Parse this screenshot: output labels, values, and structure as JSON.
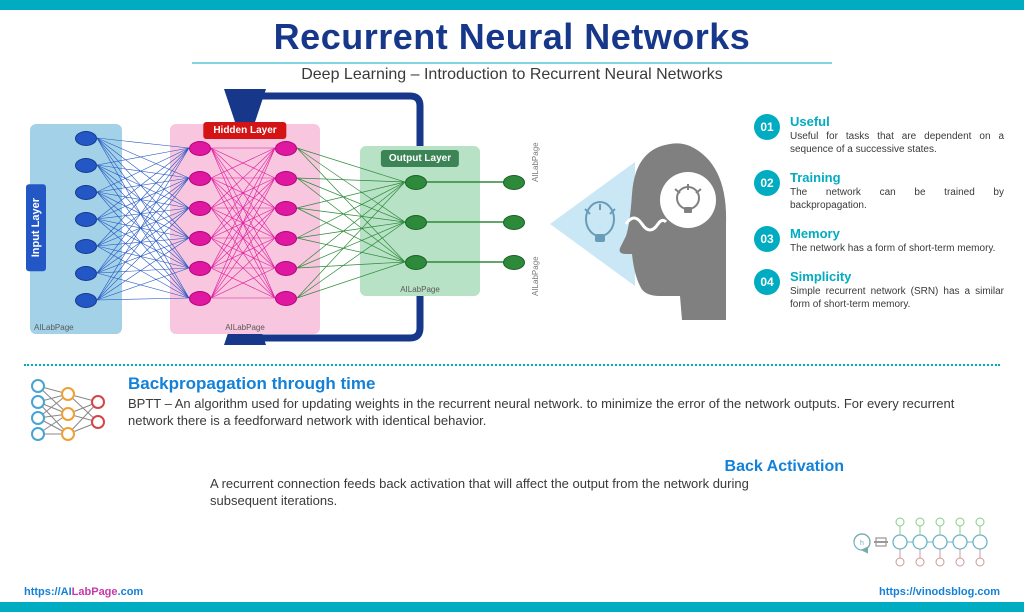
{
  "header": {
    "title": "Recurrent Neural Networks",
    "subtitle": "Deep Learning – Introduction to Recurrent Neural Networks"
  },
  "colors": {
    "accent": "#00acc1",
    "title": "#17388a",
    "link_blue": "#1481d8",
    "link_pink": "#c837ab",
    "input_fill": "#a3d1e8",
    "hidden_fill": "#f8c6de",
    "output_fill": "#b8e2c5",
    "input_node": "#2357c5",
    "hidden_node": "#e017a0",
    "output_node": "#2d8a3a",
    "hidden_label": "#d41414",
    "output_label": "#3c8456",
    "feedback_arrow": "#17388a",
    "head_gray": "#808080"
  },
  "diagram": {
    "type": "network",
    "layers": [
      {
        "name": "Input Layer",
        "node_count": 7,
        "color": "#2357c5",
        "box_color": "#a3d1e8"
      },
      {
        "name": "Hidden Layer",
        "columns": 2,
        "node_count": 6,
        "color": "#e017a0",
        "box_color": "#f8c6de"
      },
      {
        "name": "Output Layer",
        "node_count": 3,
        "color": "#2d8a3a",
        "box_color": "#b8e2c5",
        "extra_outputs": 3
      }
    ],
    "feedback_loop": true,
    "watermark": "AILabPage"
  },
  "features": [
    {
      "num": "01",
      "title": "Useful",
      "desc": "Useful for tasks that are dependent on a sequence of a successive states."
    },
    {
      "num": "02",
      "title": "Training",
      "desc": "The network can be trained by backpropagation."
    },
    {
      "num": "03",
      "title": "Memory",
      "desc": "The network has a form of short-term memory."
    },
    {
      "num": "04",
      "title": "Simplicity",
      "desc": "Simple recurrent network (SRN) has a similar form of short-term memory."
    }
  ],
  "bptt": {
    "title": "Backpropagation through time",
    "desc": "BPTT – An algorithm used for updating weights in the recurrent neural network. to minimize the error of the network outputs. For every recurrent network there is a feedforward network with identical behavior."
  },
  "back_activation": {
    "title": "Back Activation",
    "desc": "A recurrent connection feeds back activation that will affect the output from the network during subsequent iterations."
  },
  "footer": {
    "left_p1": "https://AI",
    "left_p2": "LabPage",
    "left_p3": ".com",
    "right": "https://vinodsblog.com"
  }
}
